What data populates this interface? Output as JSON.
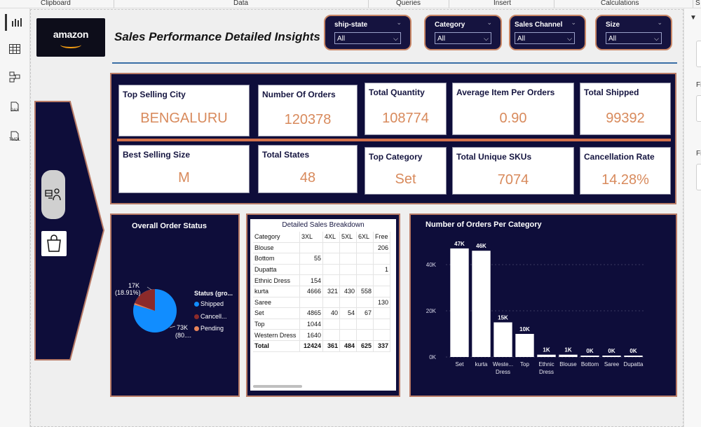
{
  "ribbon": {
    "groups": [
      "Clipboard",
      "Data",
      "Queries",
      "Insert",
      "Calculations",
      "S"
    ]
  },
  "rail": {
    "items": [
      "report-view",
      "table-view",
      "model-view",
      "DAX",
      "TMDL"
    ]
  },
  "right_pane": {
    "labels": [
      "Fi",
      "Fi"
    ]
  },
  "header": {
    "logo_text": "amazon",
    "title": "Sales Performance Detailed Insights"
  },
  "slicers": [
    {
      "label": "ship-state",
      "value": "All"
    },
    {
      "label": "Category",
      "value": "All"
    },
    {
      "label": "Sales Channel",
      "value": "All"
    },
    {
      "label": "Size",
      "value": "All"
    }
  ],
  "kpis": [
    {
      "label": "Top Selling City",
      "value": "BENGALURU"
    },
    {
      "label": "Number Of Orders",
      "value": "120378"
    },
    {
      "label": "Total Quantity",
      "value": "108774"
    },
    {
      "label": "Average Item Per Orders",
      "value": "0.90"
    },
    {
      "label": "Total Shipped",
      "value": "99392"
    },
    {
      "label": "Best Selling Size",
      "value": "M"
    },
    {
      "label": "Total States",
      "value": "48"
    },
    {
      "label": "Top Category",
      "value": "Set"
    },
    {
      "label": "Total Unique SKUs",
      "value": "7074"
    },
    {
      "label": "Cancellation Rate",
      "value": "14.28%"
    }
  ],
  "order_status": {
    "title": "Overall Order Status",
    "legend_title": "Status (gro...",
    "legend": [
      "Shipped",
      "Cancell...",
      "Pending"
    ],
    "colors": [
      "#118dff",
      "#8b2a2a",
      "#e8845a"
    ],
    "label_big_1": "73K",
    "label_big_2": "(80....",
    "label_small_1": "17K",
    "label_small_2": "(18.91%)"
  },
  "breakdown": {
    "title": "Detailed Sales Breakdown",
    "columns": [
      "Category",
      "3XL",
      "4XL",
      "5XL",
      "6XL",
      "Free"
    ],
    "rows": [
      [
        "Blouse",
        "",
        "",
        "",
        "",
        "206"
      ],
      [
        "Bottom",
        "55",
        "",
        "",
        "",
        ""
      ],
      [
        "Dupatta",
        "",
        "",
        "",
        "",
        "1"
      ],
      [
        "Ethnic Dress",
        "154",
        "",
        "",
        "",
        ""
      ],
      [
        "kurta",
        "4666",
        "321",
        "430",
        "558",
        ""
      ],
      [
        "Saree",
        "",
        "",
        "",
        "",
        "130"
      ],
      [
        "Set",
        "4865",
        "40",
        "54",
        "67",
        ""
      ],
      [
        "Top",
        "1044",
        "",
        "",
        "",
        ""
      ],
      [
        "Western Dress",
        "1640",
        "",
        "",
        "",
        ""
      ]
    ],
    "total": [
      "Total",
      "12424",
      "361",
      "484",
      "625",
      "337"
    ]
  },
  "chart_data": {
    "type": "bar",
    "title": "Number of Orders Per Category",
    "categories": [
      "Set",
      "kurta",
      "Weste... Dress",
      "Top",
      "Ethnic Dress",
      "Blouse",
      "Bottom",
      "Saree",
      "Dupatta"
    ],
    "category_lines": [
      [
        "Set"
      ],
      [
        "kurta"
      ],
      [
        "Weste...",
        "Dress"
      ],
      [
        "Top"
      ],
      [
        "Ethnic",
        "Dress"
      ],
      [
        "Blouse"
      ],
      [
        "Bottom"
      ],
      [
        "Saree"
      ],
      [
        "Dupatta"
      ]
    ],
    "values": [
      47000,
      46000,
      15000,
      10000,
      1000,
      1000,
      0,
      0,
      0
    ],
    "data_labels": [
      "47K",
      "46K",
      "15K",
      "10K",
      "1K",
      "1K",
      "0K",
      "0K",
      "0K"
    ],
    "yticks": [
      0,
      20000,
      40000
    ],
    "ytick_labels": [
      "0K",
      "20K",
      "40K"
    ],
    "ylim": [
      0,
      50000
    ],
    "bar_color": "#ffffff"
  }
}
